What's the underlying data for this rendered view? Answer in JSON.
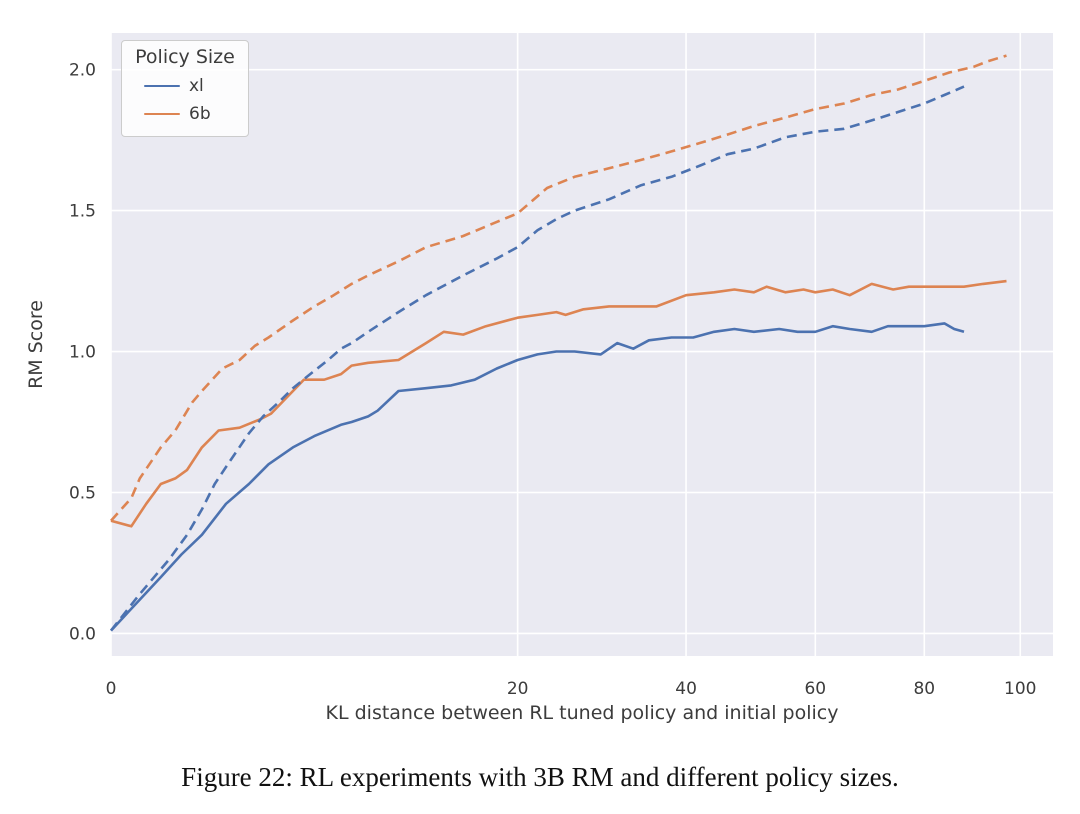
{
  "caption": "Figure 22: RL experiments with 3B RM and different policy sizes.",
  "chart_data": {
    "type": "line",
    "title": "",
    "xlabel": "KL distance between RL tuned policy and initial policy",
    "ylabel": "RM Score",
    "x_scale": "sqrt",
    "x_ticks": [
      0,
      20,
      40,
      60,
      80,
      100
    ],
    "x_tick_labels": [
      "0",
      "20",
      "40",
      "60",
      "80",
      "100"
    ],
    "y_ticks": [
      0.0,
      0.5,
      1.0,
      1.5,
      2.0
    ],
    "y_tick_labels": [
      "0.0",
      "0.5",
      "1.0",
      "1.5",
      "2.0"
    ],
    "x_sqrt_range": [
      0,
      10.36
    ],
    "ylim": [
      -0.08,
      2.13
    ],
    "grid": true,
    "plot_background": "#eaeaf2",
    "gridline_color": "#ffffff",
    "text_color": "#3c3c3c",
    "legend": {
      "title": "Policy Size",
      "position": "upper-left",
      "entries": [
        {
          "label": "xl",
          "color": "#4c72b0"
        },
        {
          "label": "6b",
          "color": "#dd8452"
        }
      ]
    },
    "series": [
      {
        "name": "xl",
        "style": "solid",
        "color": "#4c72b0",
        "points": [
          [
            0,
            0.01
          ],
          [
            0.1,
            0.12
          ],
          [
            0.3,
            0.2
          ],
          [
            0.6,
            0.28
          ],
          [
            1,
            0.35
          ],
          [
            1.6,
            0.46
          ],
          [
            2.3,
            0.53
          ],
          [
            3,
            0.6
          ],
          [
            4,
            0.66
          ],
          [
            5,
            0.7
          ],
          [
            6.4,
            0.74
          ],
          [
            7,
            0.75
          ],
          [
            8,
            0.77
          ],
          [
            8.6,
            0.79
          ],
          [
            10,
            0.86
          ],
          [
            12,
            0.87
          ],
          [
            14,
            0.88
          ],
          [
            16,
            0.9
          ],
          [
            18,
            0.94
          ],
          [
            20,
            0.97
          ],
          [
            22,
            0.99
          ],
          [
            24,
            1.0
          ],
          [
            26,
            1.0
          ],
          [
            29,
            0.99
          ],
          [
            31,
            1.03
          ],
          [
            33,
            1.01
          ],
          [
            35,
            1.04
          ],
          [
            38,
            1.05
          ],
          [
            41,
            1.05
          ],
          [
            44,
            1.07
          ],
          [
            47,
            1.08
          ],
          [
            50,
            1.07
          ],
          [
            54,
            1.08
          ],
          [
            57,
            1.07
          ],
          [
            60,
            1.07
          ],
          [
            63,
            1.09
          ],
          [
            66,
            1.08
          ],
          [
            70,
            1.07
          ],
          [
            73,
            1.09
          ],
          [
            77,
            1.09
          ],
          [
            80,
            1.09
          ],
          [
            84,
            1.1
          ],
          [
            86,
            1.08
          ],
          [
            88,
            1.07
          ]
        ]
      },
      {
        "name": "6b",
        "style": "solid",
        "color": "#dd8452",
        "points": [
          [
            0,
            0.4
          ],
          [
            0.05,
            0.38
          ],
          [
            0.15,
            0.46
          ],
          [
            0.3,
            0.53
          ],
          [
            0.5,
            0.55
          ],
          [
            0.7,
            0.58
          ],
          [
            1,
            0.66
          ],
          [
            1.4,
            0.72
          ],
          [
            2,
            0.73
          ],
          [
            2.7,
            0.76
          ],
          [
            3.1,
            0.78
          ],
          [
            4.5,
            0.9
          ],
          [
            5.5,
            0.9
          ],
          [
            6.4,
            0.92
          ],
          [
            7,
            0.95
          ],
          [
            8,
            0.96
          ],
          [
            10,
            0.97
          ],
          [
            12,
            1.03
          ],
          [
            13.4,
            1.07
          ],
          [
            15,
            1.06
          ],
          [
            17,
            1.09
          ],
          [
            20,
            1.12
          ],
          [
            22,
            1.13
          ],
          [
            24,
            1.14
          ],
          [
            25,
            1.13
          ],
          [
            27,
            1.15
          ],
          [
            30,
            1.16
          ],
          [
            33,
            1.16
          ],
          [
            36,
            1.16
          ],
          [
            40,
            1.2
          ],
          [
            44,
            1.21
          ],
          [
            47,
            1.22
          ],
          [
            50,
            1.21
          ],
          [
            52,
            1.23
          ],
          [
            55,
            1.21
          ],
          [
            58,
            1.22
          ],
          [
            60,
            1.21
          ],
          [
            63,
            1.22
          ],
          [
            66,
            1.2
          ],
          [
            70,
            1.24
          ],
          [
            74,
            1.22
          ],
          [
            77,
            1.23
          ],
          [
            80,
            1.23
          ],
          [
            84,
            1.23
          ],
          [
            88,
            1.23
          ],
          [
            92,
            1.24
          ],
          [
            97,
            1.25
          ]
        ]
      },
      {
        "name": "xl",
        "style": "dashed",
        "color": "#4c72b0",
        "points": [
          [
            0,
            0.01
          ],
          [
            0.1,
            0.14
          ],
          [
            0.4,
            0.26
          ],
          [
            0.7,
            0.35
          ],
          [
            1,
            0.44
          ],
          [
            1.3,
            0.53
          ],
          [
            1.65,
            0.6
          ],
          [
            2.3,
            0.71
          ],
          [
            2.8,
            0.77
          ],
          [
            3.4,
            0.82
          ],
          [
            4,
            0.87
          ],
          [
            4.8,
            0.92
          ],
          [
            5.7,
            0.97
          ],
          [
            6.4,
            1.01
          ],
          [
            7,
            1.03
          ],
          [
            8,
            1.07
          ],
          [
            10,
            1.14
          ],
          [
            12,
            1.2
          ],
          [
            15,
            1.27
          ],
          [
            18,
            1.33
          ],
          [
            20,
            1.37
          ],
          [
            22,
            1.43
          ],
          [
            24,
            1.47
          ],
          [
            26,
            1.5
          ],
          [
            30,
            1.54
          ],
          [
            34,
            1.59
          ],
          [
            38,
            1.62
          ],
          [
            42,
            1.66
          ],
          [
            46,
            1.7
          ],
          [
            50,
            1.72
          ],
          [
            55,
            1.76
          ],
          [
            60,
            1.78
          ],
          [
            65,
            1.79
          ],
          [
            70,
            1.82
          ],
          [
            75,
            1.85
          ],
          [
            80,
            1.88
          ],
          [
            84,
            1.91
          ],
          [
            88,
            1.94
          ]
        ]
      },
      {
        "name": "6b",
        "style": "dashed",
        "color": "#dd8452",
        "points": [
          [
            0,
            0.4
          ],
          [
            0.05,
            0.48
          ],
          [
            0.1,
            0.55
          ],
          [
            0.3,
            0.66
          ],
          [
            0.5,
            0.72
          ],
          [
            0.8,
            0.82
          ],
          [
            1,
            0.86
          ],
          [
            1.5,
            0.94
          ],
          [
            2,
            0.97
          ],
          [
            2.5,
            1.02
          ],
          [
            3,
            1.05
          ],
          [
            4,
            1.11
          ],
          [
            5,
            1.16
          ],
          [
            6,
            1.2
          ],
          [
            7,
            1.24
          ],
          [
            8,
            1.27
          ],
          [
            10,
            1.32
          ],
          [
            12,
            1.37
          ],
          [
            15,
            1.41
          ],
          [
            18,
            1.46
          ],
          [
            20,
            1.49
          ],
          [
            23,
            1.58
          ],
          [
            26,
            1.62
          ],
          [
            30,
            1.65
          ],
          [
            34,
            1.68
          ],
          [
            38,
            1.71
          ],
          [
            42,
            1.74
          ],
          [
            46,
            1.77
          ],
          [
            50,
            1.8
          ],
          [
            55,
            1.83
          ],
          [
            60,
            1.86
          ],
          [
            65,
            1.88
          ],
          [
            70,
            1.91
          ],
          [
            75,
            1.93
          ],
          [
            80,
            1.96
          ],
          [
            85,
            1.99
          ],
          [
            90,
            2.01
          ],
          [
            93,
            2.03
          ],
          [
            97,
            2.05
          ]
        ]
      }
    ]
  }
}
